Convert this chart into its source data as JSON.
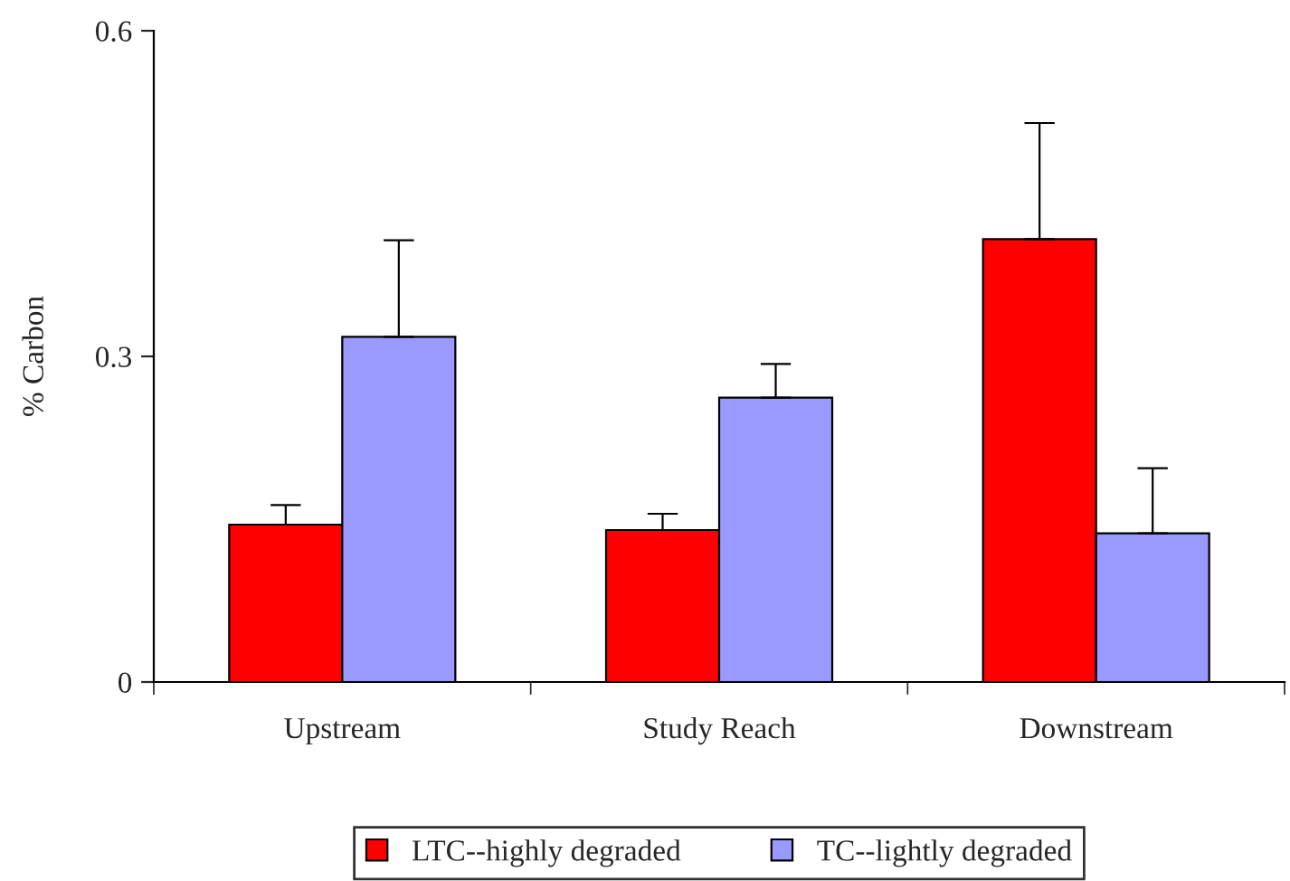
{
  "chart_data": {
    "type": "bar",
    "ylabel": "% Carbon",
    "categories": [
      "Upstream",
      "Study Reach",
      "Downstream"
    ],
    "series": [
      {
        "name": "LTC--highly degraded",
        "color": "#ff0000",
        "values": [
          0.145,
          0.14,
          0.408
        ],
        "errors": [
          [
            0.145,
            0.163
          ],
          [
            0.14,
            0.155
          ],
          [
            0.408,
            0.515
          ]
        ]
      },
      {
        "name": "TC--lightly degraded",
        "color": "#9999ff",
        "values": [
          0.318,
          0.262,
          0.137
        ],
        "errors": [
          [
            0.318,
            0.407
          ],
          [
            0.262,
            0.293
          ],
          [
            0.137,
            0.197
          ]
        ]
      }
    ],
    "ylim": [
      0,
      0.6
    ],
    "yticks": [
      0,
      0.3,
      0.6
    ],
    "grid": false,
    "legend": "bottom"
  }
}
